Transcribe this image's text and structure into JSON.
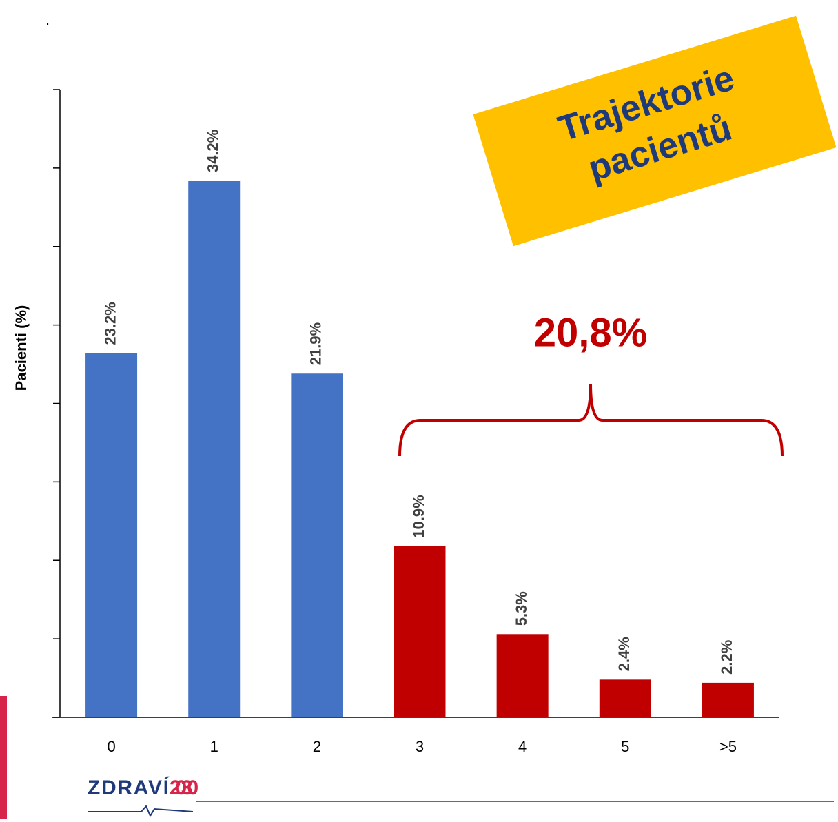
{
  "chart_data": {
    "type": "bar",
    "dot": ".",
    "y_label": "Pacienti (%)",
    "categories": [
      "0",
      "1",
      "2",
      "3",
      "4",
      "5",
      ">5"
    ],
    "values": [
      23.2,
      34.2,
      21.9,
      10.9,
      5.3,
      2.4,
      2.2
    ],
    "value_labels": [
      "23.2%",
      "34.2%",
      "21.9%",
      "10.9%",
      "5.3%",
      "2.4%",
      "2.2%"
    ],
    "colors": [
      "#4472c4",
      "#4472c4",
      "#4472c4",
      "#c00000",
      "#c00000",
      "#c00000",
      "#c00000"
    ],
    "ylim": [
      0,
      40
    ],
    "yticks": [
      0,
      5,
      10,
      15,
      20,
      25,
      30,
      35,
      40
    ],
    "annotation": "20,8%",
    "callout": [
      "Trajektorie",
      "pacientů"
    ],
    "logo": {
      "name": "ZDRAVÍ",
      "year": "2030"
    }
  }
}
